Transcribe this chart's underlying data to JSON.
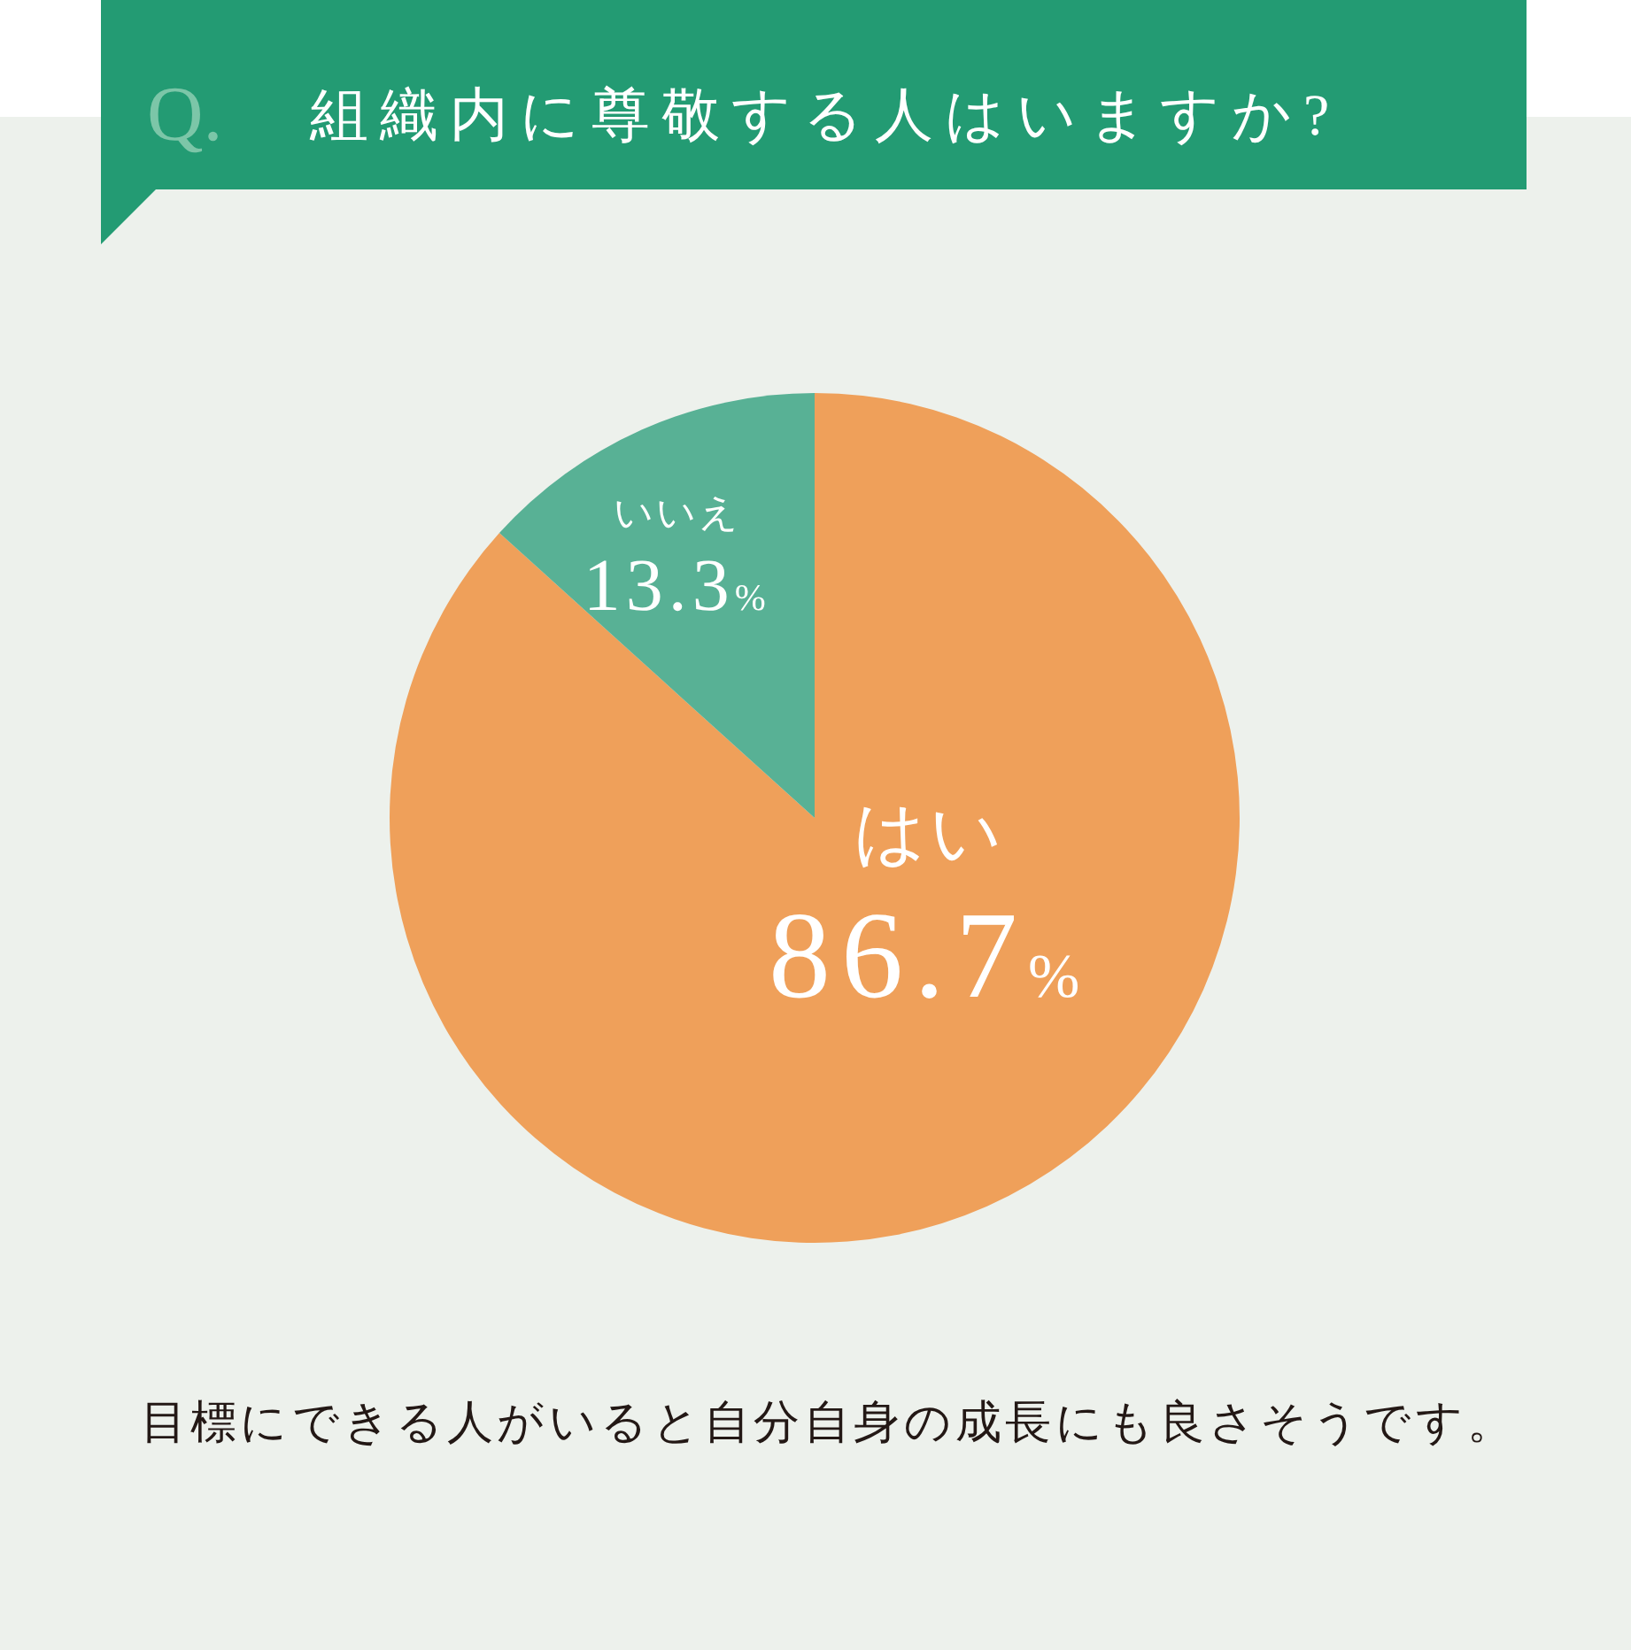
{
  "chart_data": {
    "type": "pie",
    "title": "Q. 組織内に尊敬する人はいますか?",
    "categories": [
      "はい",
      "いいえ"
    ],
    "values": [
      86.7,
      13.3
    ],
    "colors": [
      "#efa05a",
      "#58b195"
    ],
    "value_labels": [
      "86.7%",
      "13.3%"
    ],
    "annotations": [
      "目標にできる人がいると自分自身の成長にも良さそうです。"
    ]
  }
}
